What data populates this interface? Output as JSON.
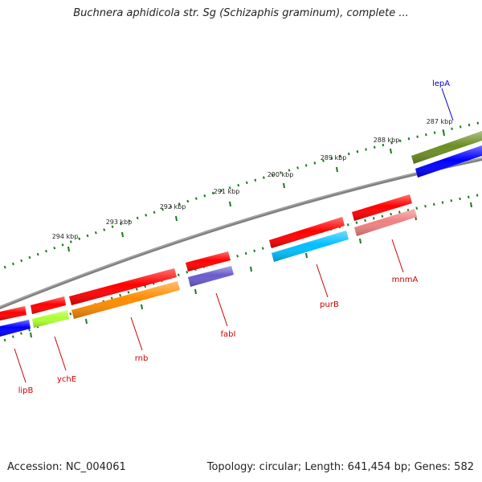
{
  "title": "Buchnera aphidicola str. Sg (Schizaphis graminum), complete ...",
  "accession": "Accession: NC_004061",
  "summary": "Topology: circular; Length: 641,454 bp; Genes: 582",
  "colors": {
    "backbone": "#808080",
    "tick": "#1a7a1a",
    "label_forward": "#0000cc",
    "label_reverse": "#cc0000"
  },
  "ruler": [
    "287 kbp",
    "288 kbp",
    "289 kbp",
    "290 kbp",
    "291 kbp",
    "292 kbp",
    "293 kbp",
    "294 kbp"
  ],
  "genes": [
    {
      "name": "lepA",
      "strand": "+",
      "color": "#0000ff"
    },
    {
      "name": "",
      "strand": "+",
      "color": "#6b8e23"
    },
    {
      "name": "mnmA",
      "strand": "-",
      "color": "#f08080"
    },
    {
      "name": "purB",
      "strand": "-",
      "color": "#00bfff"
    },
    {
      "name": "fabI",
      "strand": "-",
      "color": "#6a5acd"
    },
    {
      "name": "rnb",
      "strand": "-",
      "color": "#ff8c00"
    },
    {
      "name": "ychE",
      "strand": "-",
      "color": "#adff2f"
    },
    {
      "name": "lipB",
      "strand": "-",
      "color": "#0000ff"
    }
  ]
}
